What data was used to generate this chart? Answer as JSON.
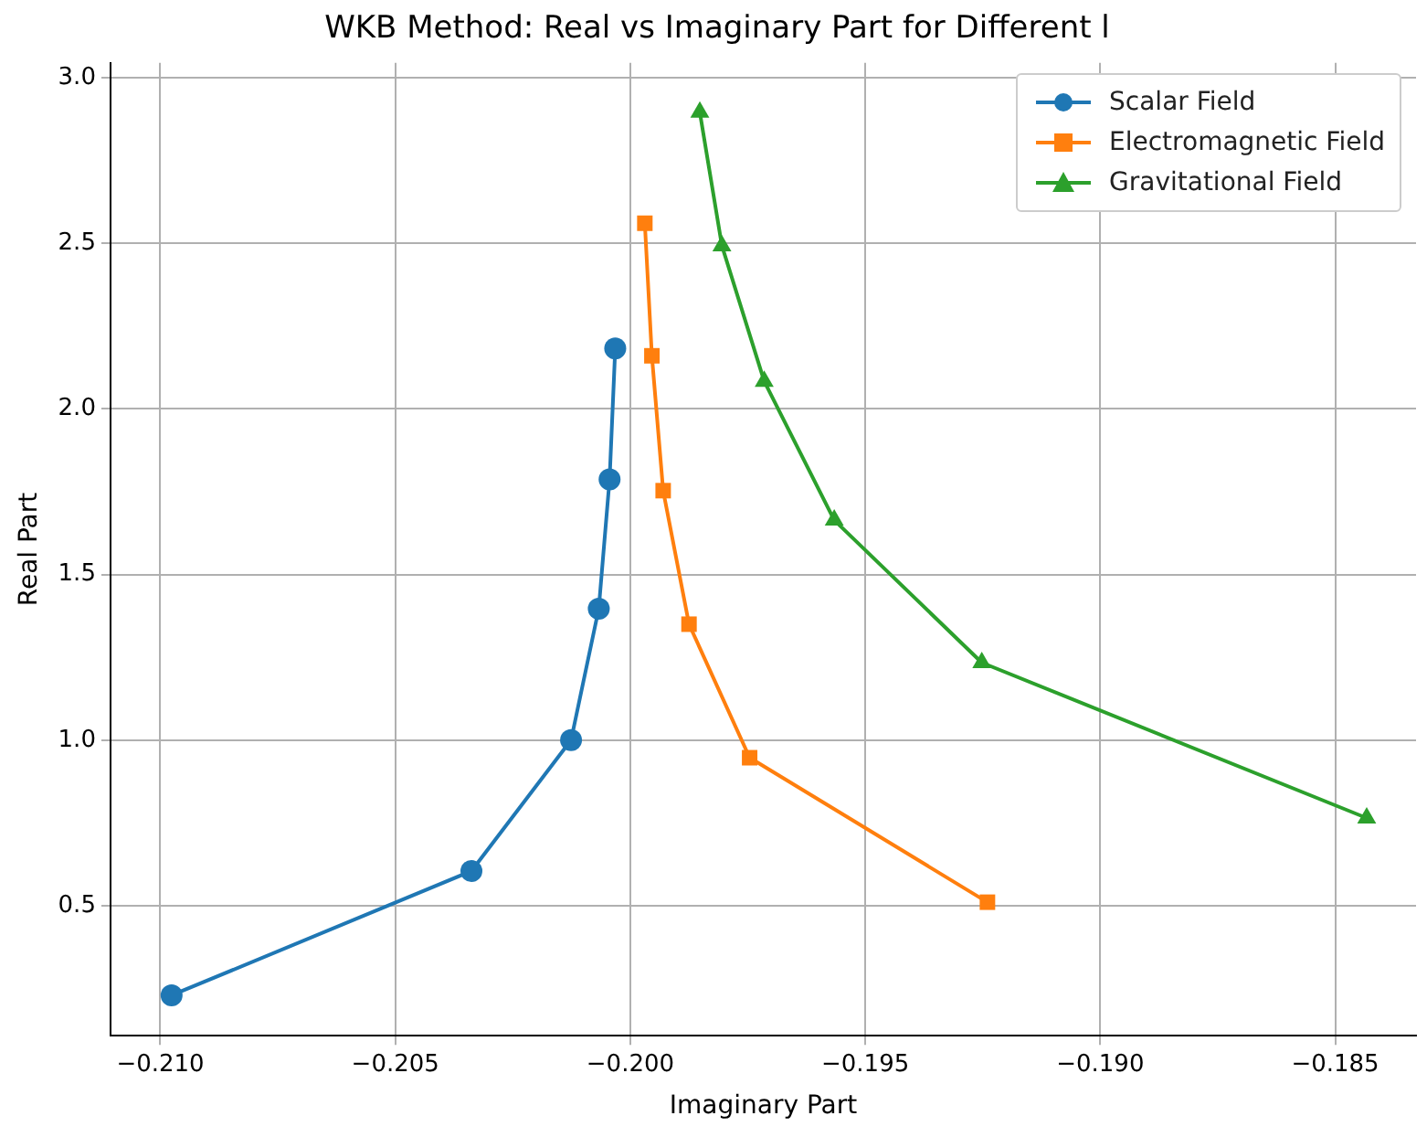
{
  "chart_data": {
    "type": "line",
    "title": "WKB Method: Real vs Imaginary Part for Different l",
    "xlabel": "Imaginary Part",
    "ylabel": "Real Part",
    "xlim": [
      -0.21106,
      -0.18328
    ],
    "ylim": [
      0.108,
      3.044
    ],
    "xticks": [
      {
        "value": -0.21,
        "label": "−0.210"
      },
      {
        "value": -0.205,
        "label": "−0.205"
      },
      {
        "value": -0.2,
        "label": "−0.200"
      },
      {
        "value": -0.195,
        "label": "−0.195"
      },
      {
        "value": -0.19,
        "label": "−0.190"
      },
      {
        "value": -0.185,
        "label": "−0.185"
      }
    ],
    "yticks": [
      {
        "value": 0.5,
        "label": "0.5"
      },
      {
        "value": 1,
        "label": "1.0"
      },
      {
        "value": 1.5,
        "label": "1.5"
      },
      {
        "value": 2,
        "label": "2.0"
      },
      {
        "value": 2.5,
        "label": "2.5"
      },
      {
        "value": 3,
        "label": "3.0"
      }
    ],
    "grid": true,
    "legend": "top right",
    "line_style": "solid",
    "series": [
      {
        "name": "Scalar Field",
        "color": "#1f77b4",
        "marker": "circle",
        "x": [
          -0.20976,
          -0.20338,
          -0.20126,
          -0.20067,
          -0.20044,
          -0.20032
        ],
        "values": [
          0.23,
          0.605,
          1.0,
          1.397,
          1.787,
          2.182
        ]
      },
      {
        "name": "Electromagnetic Field",
        "color": "#ff7f0e",
        "marker": "square",
        "x": [
          -0.1924,
          -0.19746,
          -0.19875,
          -0.1993,
          -0.19954,
          -0.19969
        ],
        "values": [
          0.511,
          0.947,
          1.35,
          1.753,
          2.16,
          2.56
        ]
      },
      {
        "name": "Gravitational Field",
        "color": "#2ca02c",
        "marker": "triangle",
        "x": [
          -0.18433,
          -0.19252,
          -0.19566,
          -0.19715,
          -0.19805,
          -0.19852
        ],
        "values": [
          0.765,
          1.234,
          1.664,
          2.083,
          2.492,
          2.895
        ]
      }
    ]
  }
}
